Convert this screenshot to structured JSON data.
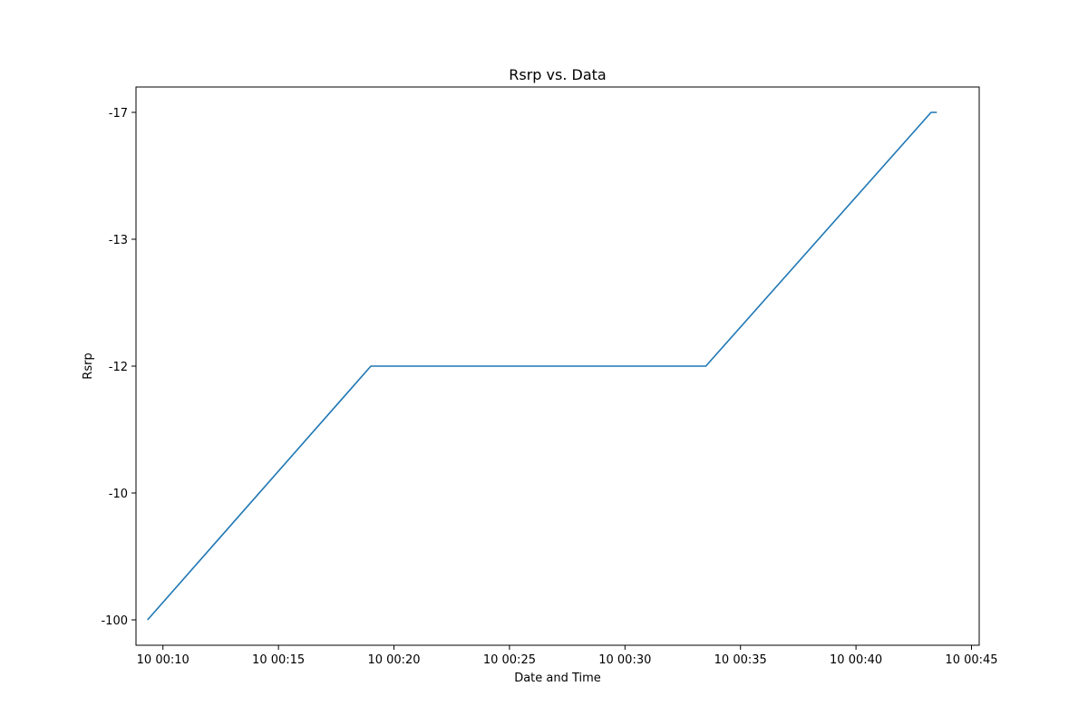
{
  "chart_data": {
    "type": "line",
    "title": "Rsrp vs. Data",
    "xlabel": "Date and Time",
    "ylabel": "Rsrp",
    "y_axis_kind": "categorical",
    "y_categories": [
      "-100",
      "-10",
      "-12",
      "-13",
      "-17"
    ],
    "x_axis_kind": "datetime",
    "x_ticks": [
      {
        "time": "00:10",
        "label": "10 00:10"
      },
      {
        "time": "00:15",
        "label": "10 00:15"
      },
      {
        "time": "00:20",
        "label": "10 00:20"
      },
      {
        "time": "00:25",
        "label": "10 00:25"
      },
      {
        "time": "00:30",
        "label": "10 00:30"
      },
      {
        "time": "00:35",
        "label": "10 00:35"
      },
      {
        "time": "00:40",
        "label": "10 00:40"
      },
      {
        "time": "00:45",
        "label": "10 00:45"
      }
    ],
    "x_range": [
      "00:08:50",
      "00:45:20"
    ],
    "grid": false,
    "legend": "none",
    "series": [
      {
        "color": "#1f77b4",
        "points": [
          {
            "x": "00:09:20",
            "y": "-100"
          },
          {
            "x": "00:19:00",
            "y": "-12"
          },
          {
            "x": "00:33:30",
            "y": "-12"
          },
          {
            "x": "00:43:15",
            "y": "-17"
          },
          {
            "x": "00:43:30",
            "y": "-17"
          }
        ]
      }
    ]
  }
}
